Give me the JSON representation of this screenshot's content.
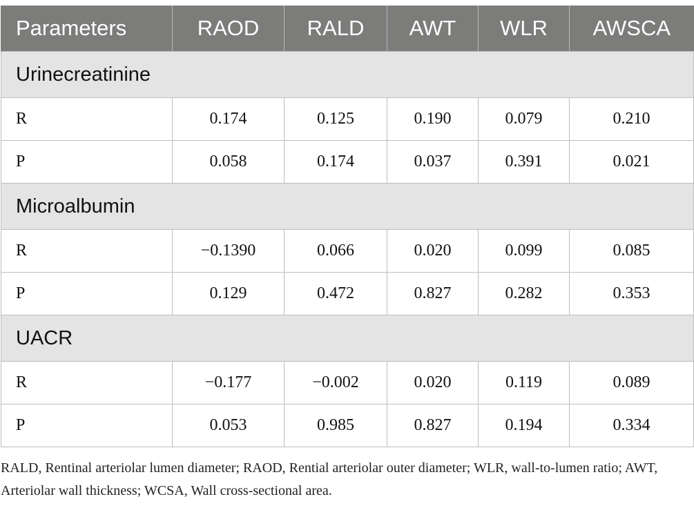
{
  "table": {
    "headers": [
      "Parameters",
      "RAOD",
      "RALD",
      "AWT",
      "WLR",
      "AWSCA"
    ],
    "sections": [
      {
        "title": "Urinecreatinine",
        "rows": [
          {
            "label": "R",
            "values": [
              "0.174",
              "0.125",
              "0.190",
              "0.079",
              "0.210"
            ]
          },
          {
            "label": "P",
            "values": [
              "0.058",
              "0.174",
              "0.037",
              "0.391",
              "0.021"
            ]
          }
        ]
      },
      {
        "title": "Microalbumin",
        "rows": [
          {
            "label": "R",
            "values": [
              "−0.1390",
              "0.066",
              "0.020",
              "0.099",
              "0.085"
            ]
          },
          {
            "label": "P",
            "values": [
              "0.129",
              "0.472",
              "0.827",
              "0.282",
              "0.353"
            ]
          }
        ]
      },
      {
        "title": "UACR",
        "rows": [
          {
            "label": "R",
            "values": [
              "−0.177",
              "−0.002",
              "0.020",
              "0.119",
              "0.089"
            ]
          },
          {
            "label": "P",
            "values": [
              "0.053",
              "0.985",
              "0.827",
              "0.194",
              "0.334"
            ]
          }
        ]
      }
    ]
  },
  "footnote": "RALD, Rentinal arteriolar lumen diameter; RAOD, Rential arteriolar outer diameter; WLR, wall-to-lumen ratio; AWT, Arteriolar wall thickness; WCSA, Wall cross-sectional area."
}
